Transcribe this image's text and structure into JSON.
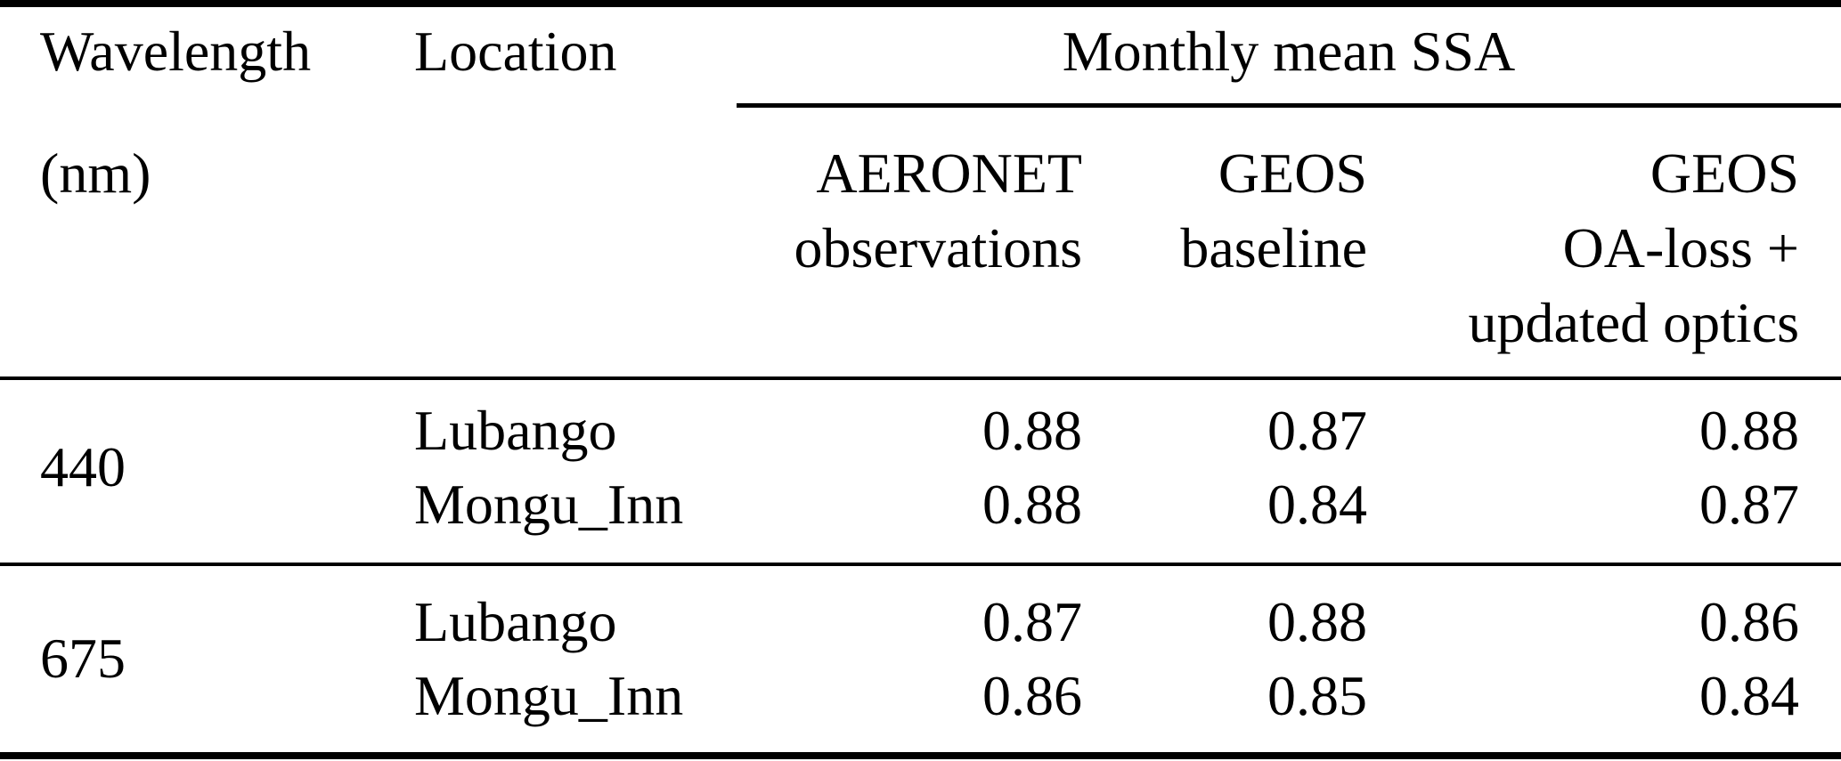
{
  "page": {
    "background_color": "#ffffff",
    "text_color": "#000000",
    "rule_color": "#000000"
  },
  "table": {
    "header": {
      "wavelength_line1": "Wavelength",
      "wavelength_line2": "(nm)",
      "location": "Location",
      "span_header": "Monthly mean SSA",
      "sub_columns": [
        {
          "lines": [
            "AERONET",
            "observations"
          ]
        },
        {
          "lines": [
            "GEOS",
            "baseline"
          ]
        },
        {
          "lines": [
            "GEOS",
            "OA-loss +",
            "updated optics"
          ]
        }
      ]
    },
    "groups": [
      {
        "wavelength": "440",
        "rows": [
          {
            "location": "Lubango",
            "aeronet": "0.88",
            "geos_baseline": "0.87",
            "geos_updated": "0.88"
          },
          {
            "location": "Mongu_Inn",
            "aeronet": "0.88",
            "geos_baseline": "0.84",
            "geos_updated": "0.87"
          }
        ]
      },
      {
        "wavelength": "675",
        "rows": [
          {
            "location": "Lubango",
            "aeronet": "0.87",
            "geos_baseline": "0.88",
            "geos_updated": "0.86"
          },
          {
            "location": "Mongu_Inn",
            "aeronet": "0.86",
            "geos_baseline": "0.85",
            "geos_updated": "0.84"
          }
        ]
      }
    ]
  }
}
